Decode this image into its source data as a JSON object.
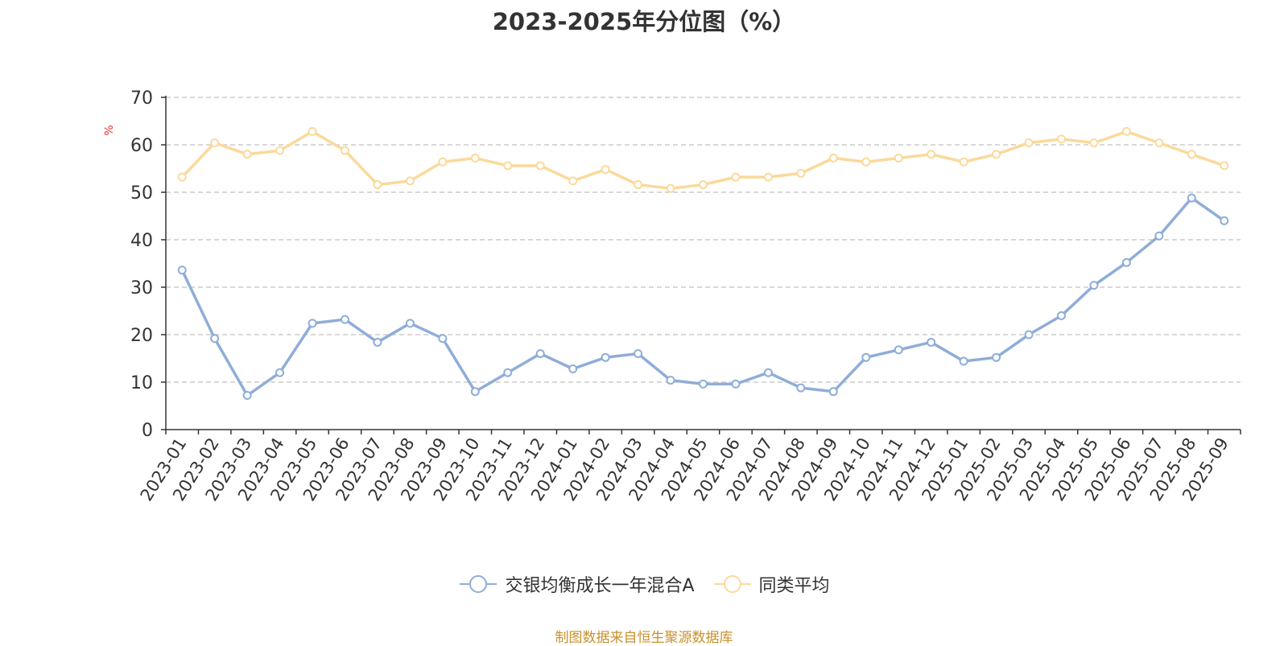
{
  "title": "2023-2025年分位图（%）",
  "source": "制图数据来自恒生聚源数据库",
  "chart_data": {
    "type": "line",
    "title": "2023-2025年分位图（%）",
    "ylabel": "%",
    "ylim": [
      0,
      70
    ],
    "yticks": [
      0,
      10,
      20,
      30,
      40,
      50,
      60,
      70
    ],
    "grid": true,
    "legend_position": "bottom",
    "categories": [
      "2023-01",
      "2023-02",
      "2023-03",
      "2023-04",
      "2023-05",
      "2023-06",
      "2023-07",
      "2023-08",
      "2023-09",
      "2023-10",
      "2023-11",
      "2023-12",
      "2024-01",
      "2024-02",
      "2024-03",
      "2024-04",
      "2024-05",
      "2024-06",
      "2024-07",
      "2024-08",
      "2024-09",
      "2024-10",
      "2024-11",
      "2024-12",
      "2025-01",
      "2025-02",
      "2025-03",
      "2025-04",
      "2025-05",
      "2025-06",
      "2025-07",
      "2025-08",
      "2025-09"
    ],
    "series": [
      {
        "name": "交银均衡成长一年混合A",
        "color": "#8fadd9",
        "values": [
          33.6,
          19.2,
          7.2,
          12.0,
          22.4,
          23.2,
          18.4,
          22.4,
          19.2,
          8.0,
          12.0,
          16.0,
          12.8,
          15.2,
          16.0,
          10.4,
          9.6,
          9.6,
          12.0,
          8.8,
          8.0,
          15.2,
          16.8,
          18.4,
          14.4,
          15.2,
          20.0,
          24.0,
          30.4,
          35.2,
          40.8,
          48.8,
          44.0
        ]
      },
      {
        "name": "同类平均",
        "color": "#fbd99b",
        "values": [
          53.2,
          60.4,
          58.0,
          58.8,
          62.8,
          58.8,
          51.6,
          52.4,
          56.4,
          57.2,
          55.6,
          55.6,
          52.4,
          54.8,
          51.6,
          50.8,
          51.6,
          53.2,
          53.2,
          54.0,
          57.2,
          56.4,
          57.2,
          58.0,
          56.4,
          58.0,
          60.4,
          61.2,
          60.4,
          62.8,
          60.4,
          58.0,
          55.6
        ]
      }
    ]
  }
}
